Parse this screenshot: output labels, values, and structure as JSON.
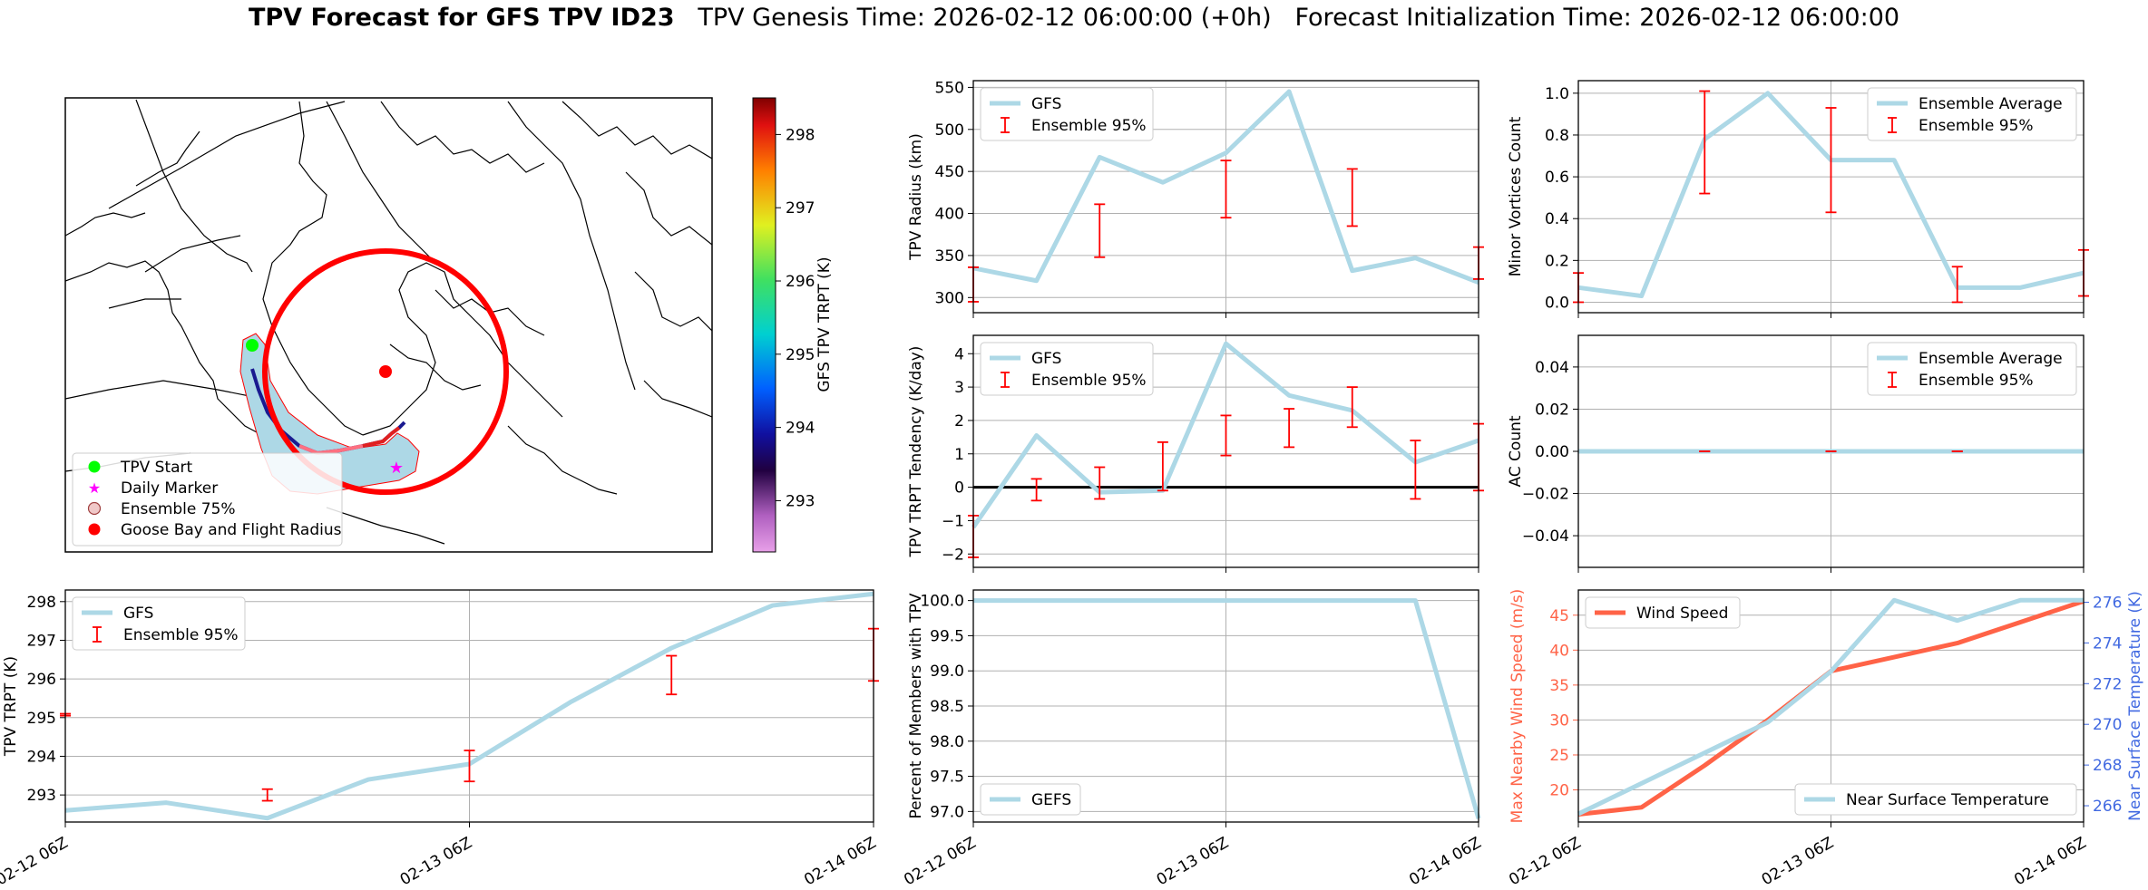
{
  "figure": {
    "title_bold": "TPV Forecast for GFS TPV ID23",
    "title_genesis": "TPV Genesis Time: 2026-02-12 06:00:00 (+0h)",
    "title_init": "Forecast Initialization Time: 2026-02-12 06:00:00",
    "colors": {
      "gfs_line": "#add8e6",
      "ensemble_err": "#ff0000",
      "wind": "#ff6347",
      "temp_axis": "#4169e1",
      "start": "#00ff00",
      "marker": "#ff00ff",
      "goose": "#ff0000",
      "ens75": "#add8e6"
    }
  },
  "map": {
    "legend": [
      "TPV Start",
      "Daily Marker",
      "Ensemble 75%",
      "Goose Bay and Flight Radius"
    ],
    "colorbar_label": "GFS TPV TRPT (K)",
    "colorbar_ticks": [
      "293",
      "294",
      "295",
      "296",
      "297",
      "298"
    ],
    "colorbar_range": [
      292.3,
      298.5
    ]
  },
  "chart_data": [
    {
      "id": "radius",
      "type": "line",
      "ylabel": "TPV Radius (km)",
      "ylim": [
        282,
        558
      ],
      "yticks": [
        "300",
        "350",
        "400",
        "450",
        "500",
        "550"
      ],
      "x": [
        0,
        1,
        2,
        3,
        4,
        5,
        6,
        7,
        8
      ],
      "series": [
        {
          "name": "GFS",
          "values": [
            335,
            320,
            467,
            437,
            472,
            545,
            332,
            347,
            318
          ]
        }
      ],
      "errorbars": {
        "name": "Ensemble 95%",
        "x": [
          0,
          2,
          4,
          6,
          8
        ],
        "low": [
          295,
          348,
          395,
          385,
          322
        ],
        "high": [
          336,
          411,
          463,
          453,
          360
        ]
      },
      "legend": "top-left",
      "grid": true
    },
    {
      "id": "minor",
      "type": "line",
      "ylabel": "Minor Vortices Count",
      "ylim": [
        -0.05,
        1.06
      ],
      "yticks": [
        "0.0",
        "0.2",
        "0.4",
        "0.6",
        "0.8",
        "1.0"
      ],
      "x": [
        0,
        1,
        2,
        3,
        4,
        5,
        6,
        7,
        8
      ],
      "series": [
        {
          "name": "Ensemble Average",
          "values": [
            0.07,
            0.03,
            0.78,
            1.0,
            0.68,
            0.68,
            0.07,
            0.07,
            0.14
          ]
        }
      ],
      "errorbars": {
        "name": "Ensemble 95%",
        "x": [
          0,
          2,
          4,
          6,
          8
        ],
        "low": [
          0.0,
          0.52,
          0.43,
          0.0,
          0.03
        ],
        "high": [
          0.14,
          1.01,
          0.93,
          0.17,
          0.25
        ]
      },
      "legend": "top-right",
      "grid": true
    },
    {
      "id": "tendency",
      "type": "line",
      "ylabel": "TPV TRPT Tendency (K/day)",
      "ylim": [
        -2.4,
        4.55
      ],
      "yticks": [
        "−2",
        "−1",
        "0",
        "1",
        "2",
        "3",
        "4"
      ],
      "x": [
        0,
        1,
        2,
        3,
        4,
        5,
        6,
        7,
        8
      ],
      "series": [
        {
          "name": "GFS",
          "values": [
            -1.2,
            1.55,
            -0.15,
            -0.1,
            4.3,
            2.75,
            2.3,
            0.75,
            1.4
          ]
        }
      ],
      "errorbars": {
        "name": "Ensemble 95%",
        "x": [
          0,
          1,
          2,
          3,
          4,
          5,
          6,
          7,
          8
        ],
        "low": [
          -2.1,
          -0.4,
          -0.35,
          -0.1,
          0.95,
          1.2,
          1.8,
          -0.35,
          -0.1
        ],
        "high": [
          -0.85,
          0.25,
          0.6,
          1.35,
          2.15,
          2.35,
          3.0,
          1.4,
          1.9
        ]
      },
      "zero_line": true,
      "legend": "top-left",
      "grid": true
    },
    {
      "id": "ac",
      "type": "line",
      "ylabel": "AC Count",
      "ylim": [
        -0.055,
        0.055
      ],
      "yticks": [
        "−0.04",
        "−0.02",
        "0.00",
        "0.02",
        "0.04"
      ],
      "x": [
        0,
        1,
        2,
        3,
        4,
        5,
        6,
        7,
        8
      ],
      "series": [
        {
          "name": "Ensemble Average",
          "values": [
            0,
            0,
            0,
            0,
            0,
            0,
            0,
            0,
            0
          ]
        }
      ],
      "errorbars": {
        "name": "Ensemble 95%",
        "x": [
          2,
          4,
          6
        ],
        "low": [
          0,
          0,
          0
        ],
        "high": [
          0,
          0,
          0
        ]
      },
      "legend": "top-right",
      "grid": true
    },
    {
      "id": "trpt",
      "type": "line",
      "ylabel": "TPV TRPT (K)",
      "ylim": [
        292.3,
        298.3
      ],
      "yticks": [
        "293",
        "294",
        "295",
        "296",
        "297",
        "298"
      ],
      "x": [
        0,
        1,
        2,
        3,
        4,
        5,
        6,
        7,
        8
      ],
      "series": [
        {
          "name": "GFS",
          "values": [
            292.6,
            292.8,
            292.4,
            293.4,
            293.8,
            295.4,
            296.8,
            297.9,
            298.2
          ]
        }
      ],
      "errorbars": {
        "name": "Ensemble 95%",
        "x": [
          0,
          2,
          4,
          6,
          8
        ],
        "low": [
          295.05,
          292.85,
          293.35,
          295.6,
          295.95
        ],
        "high": [
          295.1,
          293.15,
          294.15,
          296.6,
          297.3
        ]
      },
      "xticks": [
        "02-12 06Z",
        "02-13 06Z",
        "02-14 06Z"
      ],
      "legend": "top-left",
      "grid": true
    },
    {
      "id": "percent",
      "type": "line",
      "ylabel": "Percent of Members with TPV",
      "ylim": [
        96.85,
        100.15
      ],
      "yticks": [
        "97.0",
        "97.5",
        "98.0",
        "98.5",
        "99.0",
        "99.5",
        "100.0"
      ],
      "x": [
        0,
        1,
        2,
        3,
        4,
        5,
        6,
        7,
        8
      ],
      "series": [
        {
          "name": "GEFS",
          "values": [
            100,
            100,
            100,
            100,
            100,
            100,
            100,
            100,
            96.9
          ]
        }
      ],
      "xticks": [
        "02-12 06Z",
        "02-13 06Z",
        "02-14 06Z"
      ],
      "legend": "bottom-left",
      "grid": true
    },
    {
      "id": "wind",
      "type": "line",
      "ylabel": "Max Nearby Wind Speed (m/s)",
      "ylabel2": "Near Surface Temperature (K)",
      "ylim": [
        15.4,
        48.6
      ],
      "yticks": [
        "20",
        "25",
        "30",
        "35",
        "40",
        "45"
      ],
      "ylim2": [
        265.2,
        276.6
      ],
      "yticks2": [
        "266",
        "268",
        "270",
        "272",
        "274",
        "276"
      ],
      "x": [
        0,
        1,
        2,
        3,
        4,
        5,
        6,
        7,
        8
      ],
      "series": [
        {
          "name": "Wind Speed",
          "axis": "left",
          "values": [
            16.5,
            17.5,
            23.5,
            30,
            37,
            39,
            41,
            44,
            47
          ]
        },
        {
          "name": "Near Surface Temperature",
          "axis": "right",
          "values": [
            265.6,
            267.1,
            268.6,
            270.1,
            272.6,
            276.1,
            275.1,
            276.1,
            276.1
          ]
        }
      ],
      "xticks": [
        "02-12 06Z",
        "02-13 06Z",
        "02-14 06Z"
      ],
      "legend": "split",
      "grid": true
    }
  ]
}
